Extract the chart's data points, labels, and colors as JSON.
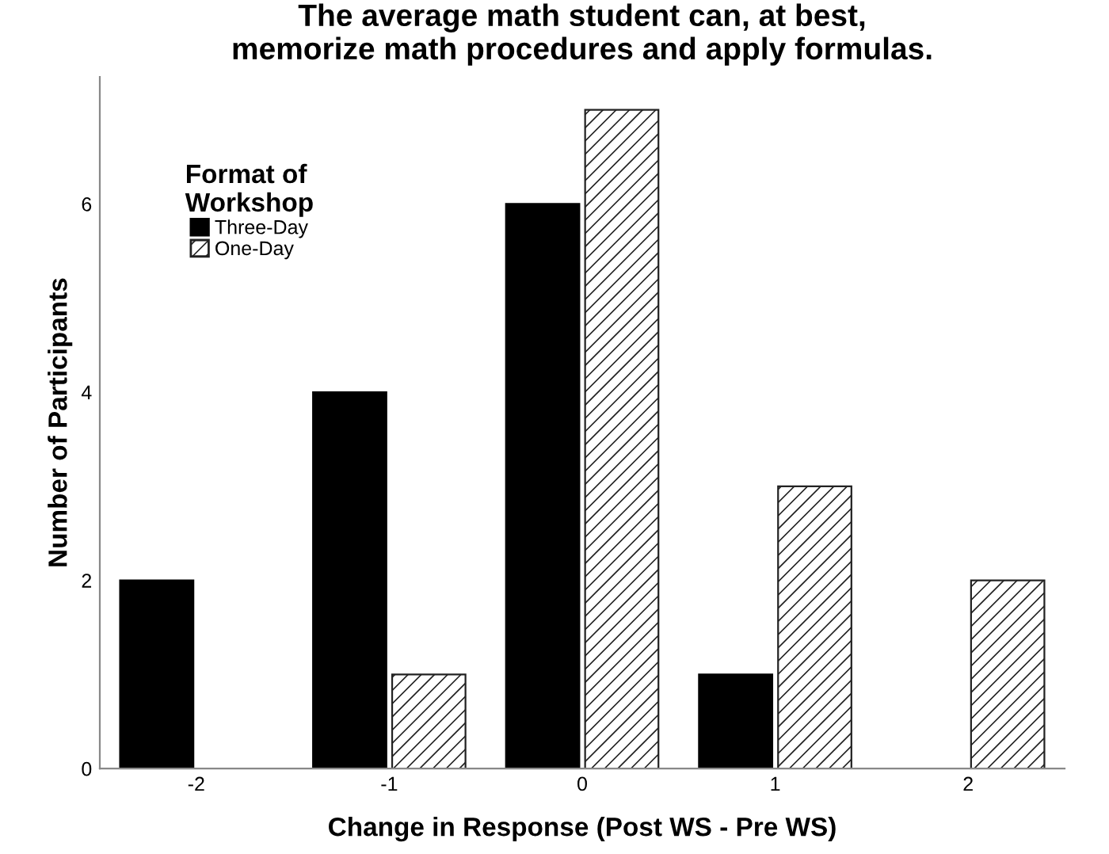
{
  "chart_data": {
    "type": "bar",
    "title": "The average math student can, at best,\nmemorize math procedures and apply formulas.",
    "xlabel": "Change in Response (Post WS - Pre WS)",
    "ylabel": "Number of Participants",
    "legend_title": "Format of\nWorkshop",
    "legend": "top left",
    "categories": [
      "-2",
      "-1",
      "0",
      "1",
      "2"
    ],
    "series": [
      {
        "name": "Three-Day",
        "color": "#000000",
        "values": [
          2,
          4,
          6,
          1,
          0
        ]
      },
      {
        "name": "One-Day",
        "color": "#222222",
        "values": [
          0,
          1,
          7,
          3,
          2
        ]
      }
    ],
    "ylim": [
      0,
      7.35
    ],
    "yticks": [
      0,
      2,
      4,
      6
    ],
    "grid": false
  }
}
